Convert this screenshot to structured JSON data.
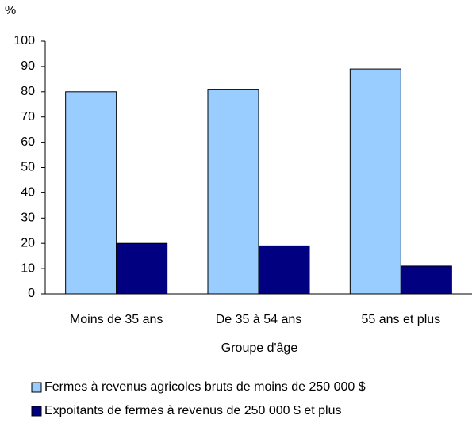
{
  "chart_data": {
    "type": "bar",
    "y_axis_label": "%",
    "x_axis_label": "Groupe d'âge",
    "categories": [
      "Moins de 35 ans",
      "De 35 à 54 ans",
      "55 ans et plus"
    ],
    "series": [
      {
        "name": "Fermes à revenus agricoles bruts de moins de 250 000 $",
        "color": "#99ccff",
        "values": [
          80,
          81,
          89
        ]
      },
      {
        "name": "Expoitants de fermes à revenus de 250 000 $ et plus",
        "color": "#000080",
        "values": [
          20,
          19,
          11
        ]
      }
    ],
    "ylim": [
      0,
      100
    ],
    "yticks": [
      0,
      10,
      20,
      30,
      40,
      50,
      60,
      70,
      80,
      90,
      100
    ],
    "grid": false
  }
}
